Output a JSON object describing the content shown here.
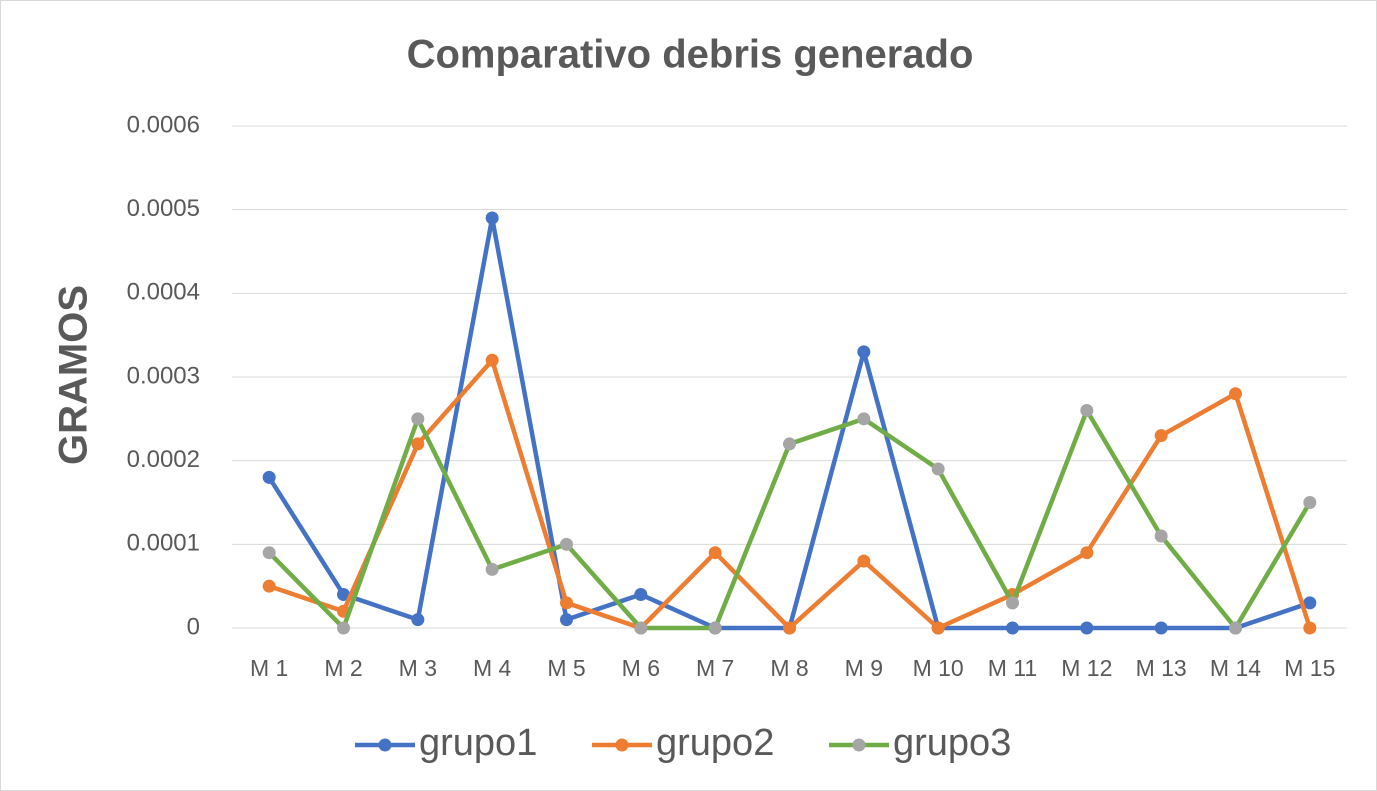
{
  "chart_data": {
    "type": "line",
    "title": "Comparativo debris generado",
    "y_label": "GRAMOS",
    "categories": [
      "M 1",
      "M 2",
      "M 3",
      "M 4",
      "M 5",
      "M 6",
      "M 7",
      "M 8",
      "M 9",
      "M 10",
      "M 11",
      "M 12",
      "M 13",
      "M 14",
      "M 15"
    ],
    "series": [
      {
        "name": "grupo1",
        "color": "#4472c4",
        "marker_color": "#4472c4",
        "values": [
          0.00018,
          4e-05,
          1e-05,
          0.00049,
          1e-05,
          4e-05,
          0,
          0,
          0.00033,
          0,
          0,
          0,
          0,
          0,
          3e-05
        ]
      },
      {
        "name": "grupo2",
        "color": "#ed7d31",
        "marker_color": "#ed7d31",
        "values": [
          5e-05,
          2e-05,
          0.00022,
          0.00032,
          3e-05,
          0,
          9e-05,
          0,
          8e-05,
          0,
          4e-05,
          9e-05,
          0.00023,
          0.00028,
          0
        ]
      },
      {
        "name": "grupo3",
        "color": "#70ad47",
        "marker_color": "#a5a5a5",
        "values": [
          9e-05,
          0,
          0.00025,
          7e-05,
          0.0001,
          0,
          0,
          0.00022,
          0.00025,
          0.00019,
          3e-05,
          0.00026,
          0.00011,
          0,
          0.00015
        ]
      }
    ],
    "ylim": [
      0,
      0.0006
    ],
    "yticks": [
      0,
      0.0001,
      0.0002,
      0.0003,
      0.0004,
      0.0005,
      0.0006
    ],
    "grid": true,
    "legend": "bottom"
  }
}
